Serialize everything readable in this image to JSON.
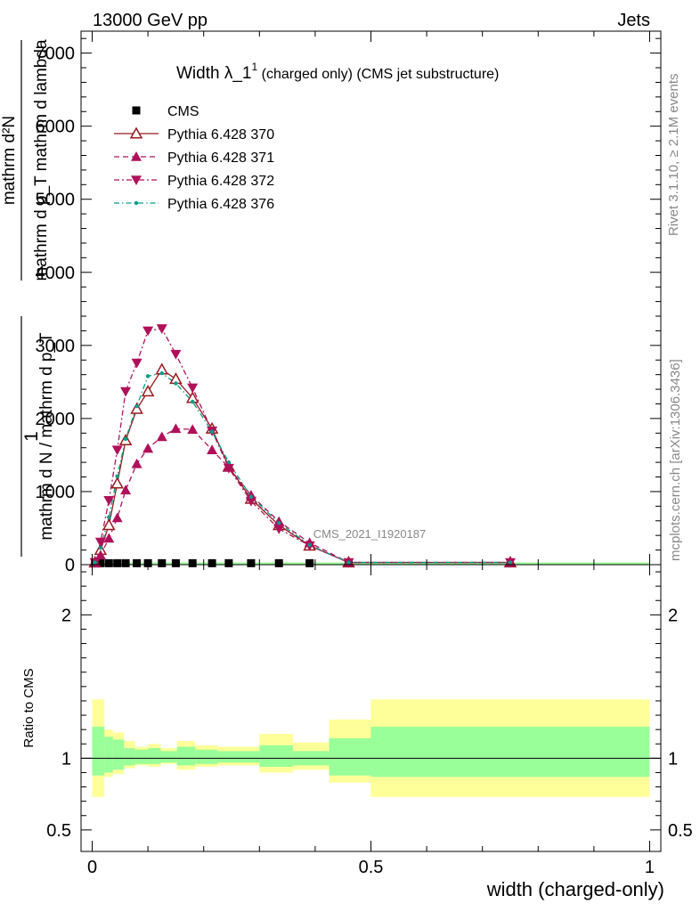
{
  "header": {
    "left": "13000 GeV pp",
    "right": "Jets",
    "rivet": "Rivet 3.1.10, ≥ 2.1M events",
    "mcplots": "mcplots.cern.ch [arXiv:1306.3436]",
    "watermark": "CMS_2021_I1920187"
  },
  "title": {
    "main": "Width λ_1",
    "sup": "1",
    "rest": " (charged only) (CMS jet substructure)"
  },
  "ylabel_main": {
    "num": "mathrm d²N",
    "den": "mathrm d p_T mathrm d lambda",
    "one": "1",
    "frac_den": "mathrm d N / mathrm d p_T"
  },
  "xlabel": "width (charged-only)",
  "ratio_ylabel": "Ratio to CMS",
  "colors": {
    "cms": "#000000",
    "s370": "#9a1b1e",
    "s371": "#b0105a",
    "s372": "#b0105a",
    "s376": "#009e8a",
    "band_inner": "#99ff99",
    "band_outer": "#ffff99"
  },
  "chart_data": [
    {
      "type": "line",
      "xlim": [
        -0.02,
        1.02
      ],
      "ylim": [
        0,
        7300
      ],
      "yticks": [
        0,
        1000,
        2000,
        3000,
        4000,
        5000,
        6000,
        7000
      ],
      "ytick_labels": [
        "0",
        "1000",
        "2000",
        "3000",
        "4000",
        "5000",
        "6000",
        "7000"
      ],
      "series": [
        {
          "name": "CMS",
          "style": "cms",
          "x": [
            0.005,
            0.015,
            0.03,
            0.045,
            0.06,
            0.08,
            0.1,
            0.125,
            0.15,
            0.18,
            0.215,
            0.245,
            0.285,
            0.335,
            0.39,
            0.46
          ],
          "y": [
            20,
            20,
            20,
            20,
            20,
            20,
            20,
            20,
            20,
            20,
            20,
            20,
            20,
            20,
            20,
            20
          ]
        },
        {
          "name": "Pythia 6.428 370",
          "style": "s370",
          "x": [
            0.005,
            0.015,
            0.03,
            0.045,
            0.06,
            0.08,
            0.1,
            0.125,
            0.15,
            0.18,
            0.215,
            0.245,
            0.285,
            0.335,
            0.39,
            0.46,
            0.75
          ],
          "y": [
            30,
            200,
            540,
            1110,
            1700,
            2130,
            2370,
            2670,
            2540,
            2280,
            1860,
            1340,
            900,
            540,
            260,
            30,
            30
          ]
        },
        {
          "name": "Pythia 6.428 371",
          "style": "s371",
          "x": [
            0.005,
            0.015,
            0.03,
            0.045,
            0.06,
            0.08,
            0.1,
            0.125,
            0.15,
            0.18,
            0.215,
            0.245,
            0.285,
            0.335,
            0.39,
            0.46,
            0.75
          ],
          "y": [
            20,
            130,
            360,
            640,
            1020,
            1380,
            1590,
            1750,
            1860,
            1850,
            1570,
            1330,
            950,
            590,
            300,
            30,
            30
          ]
        },
        {
          "name": "Pythia 6.428 372",
          "style": "s372",
          "x": [
            0.005,
            0.015,
            0.03,
            0.045,
            0.06,
            0.08,
            0.1,
            0.125,
            0.15,
            0.18,
            0.215,
            0.245,
            0.285,
            0.335,
            0.39,
            0.46,
            0.75
          ],
          "y": [
            30,
            310,
            880,
            1570,
            2370,
            2760,
            3200,
            3230,
            2880,
            2420,
            1830,
            1320,
            870,
            490,
            260,
            30,
            30
          ]
        },
        {
          "name": "Pythia 6.428 376",
          "style": "s376",
          "x": [
            0.005,
            0.015,
            0.03,
            0.045,
            0.06,
            0.08,
            0.1,
            0.125,
            0.15,
            0.18,
            0.215,
            0.245,
            0.285,
            0.335,
            0.39,
            0.46,
            0.75
          ],
          "y": [
            30,
            230,
            650,
            1210,
            1720,
            2170,
            2580,
            2620,
            2480,
            2230,
            1820,
            1400,
            930,
            570,
            270,
            30,
            30
          ]
        }
      ]
    },
    {
      "type": "area",
      "ylabel": "Ratio to CMS",
      "xlim": [
        -0.02,
        1.02
      ],
      "ylim": [
        0.35,
        2.35
      ],
      "yticks": [
        0.5,
        1,
        2
      ],
      "ytick_labels": [
        "0.5",
        "1",
        "2"
      ],
      "xticks": [
        0,
        0.5,
        1
      ],
      "xtick_labels": [
        "0",
        "0.5",
        "1"
      ],
      "reference": 1,
      "bins": [
        {
          "x0": 0.0,
          "x1": 0.022,
          "inner": [
            0.88,
            1.22
          ],
          "outer": [
            0.73,
            1.41
          ]
        },
        {
          "x0": 0.022,
          "x1": 0.037,
          "inner": [
            0.9,
            1.15
          ],
          "outer": [
            0.87,
            1.2
          ]
        },
        {
          "x0": 0.037,
          "x1": 0.057,
          "inner": [
            0.92,
            1.13
          ],
          "outer": [
            0.89,
            1.18
          ]
        },
        {
          "x0": 0.057,
          "x1": 0.077,
          "inner": [
            0.95,
            1.07
          ],
          "outer": [
            0.93,
            1.12
          ]
        },
        {
          "x0": 0.077,
          "x1": 0.1,
          "inner": [
            0.96,
            1.06
          ],
          "outer": [
            0.95,
            1.08
          ]
        },
        {
          "x0": 0.1,
          "x1": 0.123,
          "inner": [
            0.96,
            1.07
          ],
          "outer": [
            0.94,
            1.1
          ]
        },
        {
          "x0": 0.123,
          "x1": 0.152,
          "inner": [
            0.97,
            1.05
          ],
          "outer": [
            0.96,
            1.07
          ]
        },
        {
          "x0": 0.152,
          "x1": 0.185,
          "inner": [
            0.95,
            1.08
          ],
          "outer": [
            0.92,
            1.12
          ]
        },
        {
          "x0": 0.185,
          "x1": 0.225,
          "inner": [
            0.96,
            1.06
          ],
          "outer": [
            0.94,
            1.09
          ]
        },
        {
          "x0": 0.225,
          "x1": 0.3,
          "inner": [
            0.97,
            1.05
          ],
          "outer": [
            0.95,
            1.08
          ]
        },
        {
          "x0": 0.3,
          "x1": 0.36,
          "inner": [
            0.94,
            1.09
          ],
          "outer": [
            0.9,
            1.17
          ]
        },
        {
          "x0": 0.36,
          "x1": 0.425,
          "inner": [
            0.95,
            1.05
          ],
          "outer": [
            0.92,
            1.11
          ]
        },
        {
          "x0": 0.425,
          "x1": 0.5,
          "inner": [
            0.88,
            1.14
          ],
          "outer": [
            0.83,
            1.27
          ]
        },
        {
          "x0": 0.5,
          "x1": 1.0,
          "inner": [
            0.87,
            1.22
          ],
          "outer": [
            0.73,
            1.41
          ]
        }
      ]
    }
  ]
}
